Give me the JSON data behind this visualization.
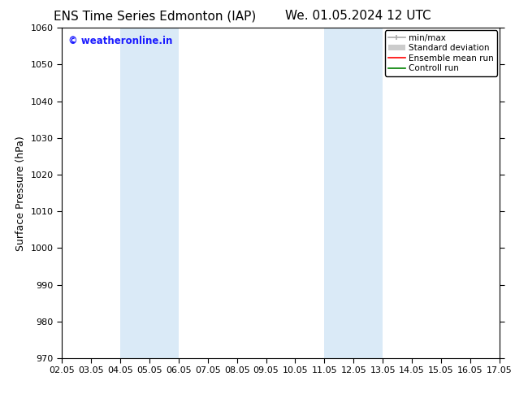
{
  "title_left": "ENS Time Series Edmonton (IAP)",
  "title_right": "We. 01.05.2024 12 UTC",
  "ylabel": "Surface Pressure (hPa)",
  "ylim": [
    970,
    1060
  ],
  "yticks": [
    970,
    980,
    990,
    1000,
    1010,
    1020,
    1030,
    1040,
    1050,
    1060
  ],
  "xlim_min": 0,
  "xlim_max": 15,
  "xtick_labels": [
    "02.05",
    "03.05",
    "04.05",
    "05.05",
    "06.05",
    "07.05",
    "08.05",
    "09.05",
    "10.05",
    "11.05",
    "12.05",
    "13.05",
    "14.05",
    "15.05",
    "16.05",
    "17.05"
  ],
  "watermark": "© weatheronline.in",
  "watermark_color": "#1a1aff",
  "bg_color": "#ffffff",
  "plot_bg_color": "#ffffff",
  "shaded_regions": [
    {
      "x_start": 2,
      "x_end": 4,
      "color": "#daeaf7"
    },
    {
      "x_start": 9,
      "x_end": 11,
      "color": "#daeaf7"
    }
  ],
  "legend_entries": [
    {
      "label": "min/max",
      "color": "#aaaaaa",
      "lw": 1.2,
      "style": "minmax"
    },
    {
      "label": "Standard deviation",
      "color": "#cccccc",
      "lw": 6,
      "style": "band"
    },
    {
      "label": "Ensemble mean run",
      "color": "#ff0000",
      "lw": 1.2,
      "style": "line"
    },
    {
      "label": "Controll run",
      "color": "#008000",
      "lw": 1.2,
      "style": "line"
    }
  ],
  "title_fontsize": 11,
  "tick_label_fontsize": 8,
  "ylabel_fontsize": 9,
  "watermark_fontsize": 8.5
}
